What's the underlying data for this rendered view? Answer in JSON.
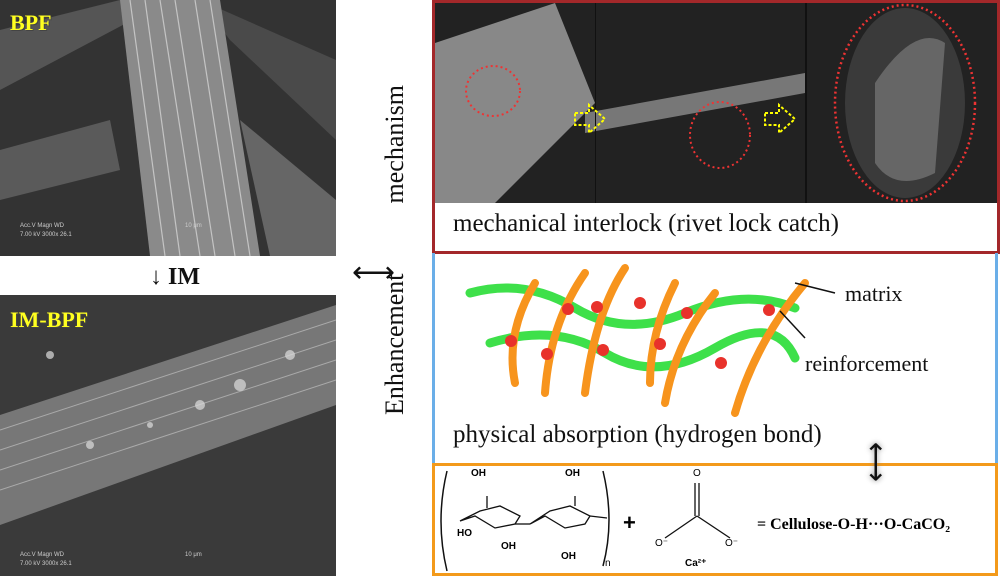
{
  "left_panel": {
    "top_image": {
      "label": "BPF",
      "scale_line1": "Acc.V   Magn   WD",
      "scale_line2": "7.00 kV 3000x   26.1",
      "scale_bar": "10 μm"
    },
    "process_arrow": {
      "icon": "arrow-down-icon",
      "label": "IM"
    },
    "bottom_image": {
      "label": "IM-BPF",
      "scale_line1": "Acc.V   Magn   WD",
      "scale_line2": "7.00 kV 3000x   26.1",
      "scale_bar": "10 μm"
    }
  },
  "center": {
    "vertical_title_left": "Enhancement",
    "vertical_title_right": "mechanism",
    "arrow_icon": "double-arrow-horizontal-icon"
  },
  "mechanisms": {
    "mechanical": {
      "caption": "mechanical interlock (rivet lock catch)",
      "border_color": "#a3282a"
    },
    "physical": {
      "caption": "physical absorption (hydrogen bond)",
      "matrix_label": "matrix",
      "reinforcement_label": "reinforcement",
      "border_color": "#6aaee8",
      "matrix_color": "#f7941d",
      "reinforcement_color": "#3ee04a",
      "node_color": "#e8322b"
    },
    "chemical": {
      "border_color": "#f39a1b",
      "oh": "OH",
      "ho": "HO",
      "o": "O",
      "n": "n",
      "plus": "+",
      "carbonate_o": "O",
      "o_minus": "O⁻",
      "ca": "Ca²⁺",
      "equation": "= Cellulose-O-H···O-CaCO₂"
    }
  }
}
